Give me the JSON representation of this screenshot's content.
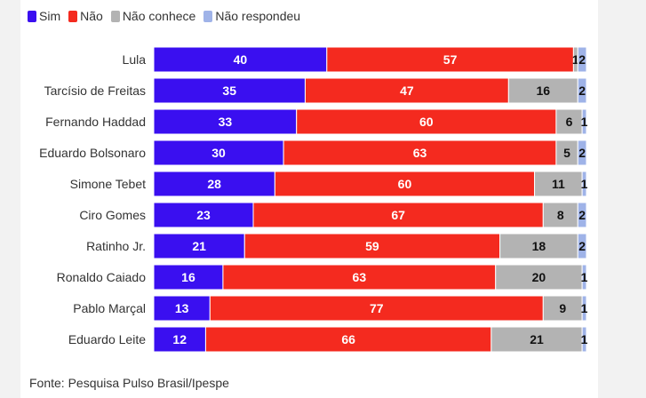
{
  "chart_data": {
    "type": "bar",
    "orientation": "horizontal",
    "stacked": true,
    "normalized": true,
    "categories": [
      "Lula",
      "Tarcísio de Freitas",
      "Fernando Haddad",
      "Eduardo Bolsonaro",
      "Simone Tebet",
      "Ciro Gomes",
      "Ratinho Jr.",
      "Ronaldo Caiado",
      "Pablo Marçal",
      "Eduardo Leite"
    ],
    "series": [
      {
        "name": "Sim",
        "color": "#3a0ff0",
        "label_color": "#ffffff",
        "values": [
          40,
          35,
          33,
          30,
          28,
          23,
          21,
          16,
          13,
          12
        ]
      },
      {
        "name": "Não",
        "color": "#f42a1f",
        "label_color": "#ffffff",
        "values": [
          57,
          47,
          60,
          63,
          60,
          67,
          59,
          63,
          77,
          66
        ]
      },
      {
        "name": "Não conhece",
        "color": "#b3b3b3",
        "label_color": "#111111",
        "values": [
          1,
          16,
          6,
          5,
          11,
          8,
          18,
          20,
          9,
          21
        ]
      },
      {
        "name": "Não respondeu",
        "color": "#9fb3e8",
        "label_color": "#111111",
        "values": [
          2,
          2,
          1,
          2,
          1,
          2,
          2,
          1,
          1,
          1
        ]
      }
    ],
    "legend_position": "top-left",
    "grid": false
  },
  "source": "Fonte: Pesquisa Pulso Brasil/Ipespe"
}
